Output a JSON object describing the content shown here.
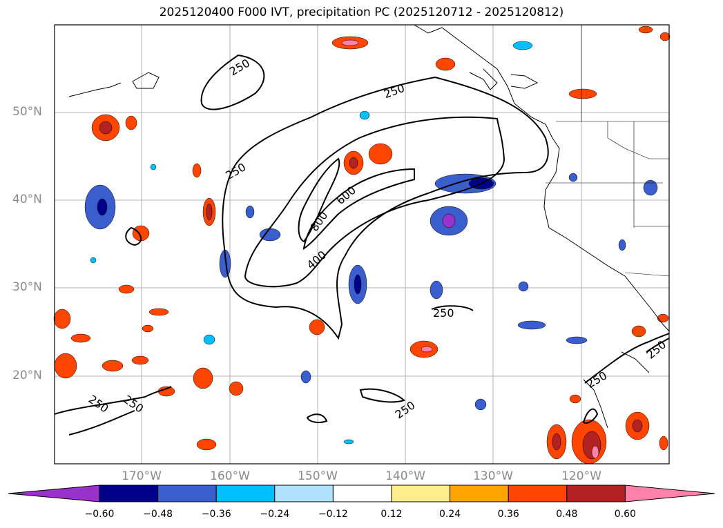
{
  "title": "2025120400 F000 IVT, precipitation PC (2025120712 - 2025120812)",
  "lat_labels": [
    "50°N",
    "40°N",
    "30°N",
    "20°N"
  ],
  "lon_labels": [
    "170°W",
    "160°W",
    "150°W",
    "140°W",
    "130°W",
    "120°W"
  ],
  "contour_labels": [
    "250",
    "250",
    "250",
    "600",
    "800",
    "400",
    "250",
    "250",
    "250",
    "250",
    "250",
    "250"
  ],
  "colorbar": {
    "ticks": [
      "−0.60",
      "−0.48",
      "−0.36",
      "−0.24",
      "−0.12",
      "0.12",
      "0.24",
      "0.36",
      "0.48",
      "0.60"
    ],
    "colors": [
      "#9932cc",
      "#00008b",
      "#3a5fcd",
      "#00bfff",
      "#b0e2ff",
      "#ffffff",
      "#ffec8b",
      "#ffa500",
      "#ff4500",
      "#b22222",
      "#ff82ab"
    ]
  },
  "colors": {
    "contour": "#000000",
    "grid": "#b0b0b0",
    "coast": "#000000"
  }
}
